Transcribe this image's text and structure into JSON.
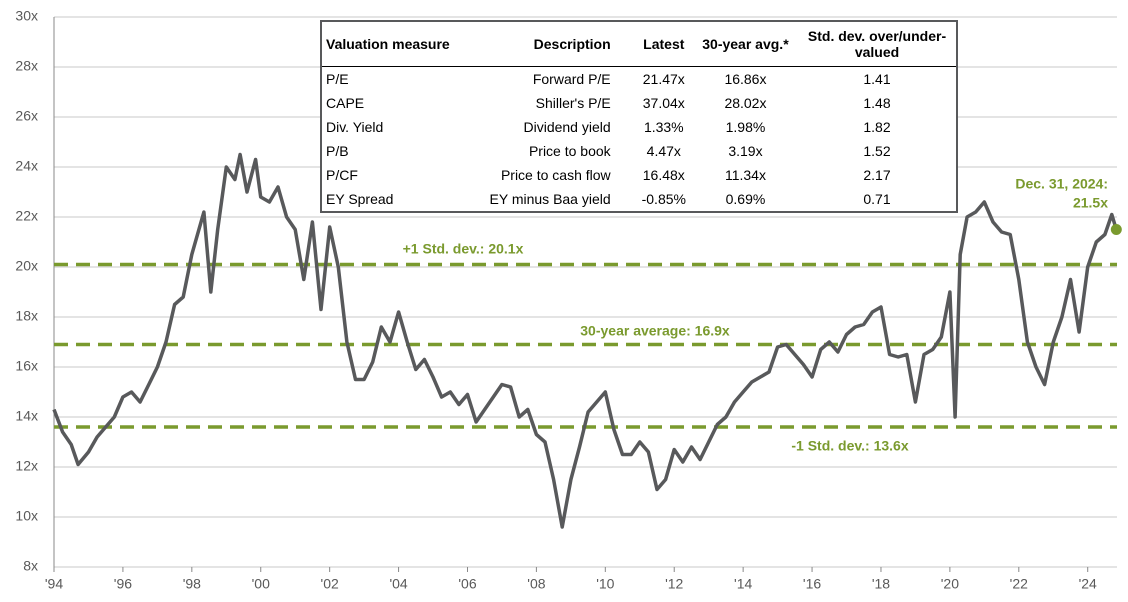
{
  "chart_data": {
    "type": "line",
    "color": "#58595b",
    "x": [
      1994.0,
      1994.25,
      1994.5,
      1994.7,
      1995.0,
      1995.25,
      1995.5,
      1995.75,
      1996.0,
      1996.25,
      1996.5,
      1996.75,
      1997.0,
      1997.25,
      1997.5,
      1997.75,
      1998.0,
      1998.35,
      1998.55,
      1998.75,
      1999.0,
      1999.25,
      1999.4,
      1999.6,
      1999.85,
      2000.0,
      2000.25,
      2000.5,
      2000.75,
      2001.0,
      2001.25,
      2001.5,
      2001.75,
      2002.0,
      2002.25,
      2002.5,
      2002.75,
      2003.0,
      2003.25,
      2003.5,
      2003.75,
      2004.0,
      2004.25,
      2004.5,
      2004.75,
      2005.0,
      2005.25,
      2005.5,
      2005.75,
      2006.0,
      2006.25,
      2006.5,
      2006.75,
      2007.0,
      2007.25,
      2007.5,
      2007.75,
      2008.0,
      2008.25,
      2008.5,
      2008.75,
      2009.0,
      2009.25,
      2009.5,
      2009.75,
      2010.0,
      2010.25,
      2010.5,
      2010.75,
      2011.0,
      2011.25,
      2011.5,
      2011.75,
      2012.0,
      2012.25,
      2012.5,
      2012.75,
      2013.0,
      2013.25,
      2013.5,
      2013.75,
      2014.0,
      2014.25,
      2014.5,
      2014.75,
      2015.0,
      2015.25,
      2015.5,
      2015.75,
      2016.0,
      2016.25,
      2016.5,
      2016.75,
      2017.0,
      2017.25,
      2017.5,
      2017.75,
      2018.0,
      2018.25,
      2018.5,
      2018.75,
      2019.0,
      2019.25,
      2019.5,
      2019.75,
      2020.0,
      2020.15,
      2020.3,
      2020.5,
      2020.75,
      2021.0,
      2021.25,
      2021.5,
      2021.75,
      2022.0,
      2022.25,
      2022.5,
      2022.75,
      2023.0,
      2023.25,
      2023.5,
      2023.75,
      2024.0,
      2024.25,
      2024.5,
      2024.7,
      2024.83
    ],
    "values": [
      14.3,
      13.4,
      12.9,
      12.1,
      12.6,
      13.2,
      13.6,
      14.0,
      14.8,
      15.0,
      14.6,
      15.3,
      16.0,
      17.0,
      18.5,
      18.8,
      20.5,
      22.2,
      19.0,
      21.5,
      24.0,
      23.5,
      24.5,
      23.0,
      24.3,
      22.8,
      22.6,
      23.2,
      22.0,
      21.5,
      19.5,
      21.8,
      18.3,
      21.6,
      20.0,
      17.0,
      15.5,
      15.5,
      16.2,
      17.6,
      17.0,
      18.2,
      17.0,
      15.9,
      16.3,
      15.6,
      14.8,
      15.0,
      14.5,
      14.9,
      13.8,
      14.3,
      14.8,
      15.3,
      15.2,
      14.0,
      14.3,
      13.3,
      13.0,
      11.5,
      9.6,
      11.5,
      12.8,
      14.2,
      14.6,
      15.0,
      13.5,
      12.5,
      12.5,
      13.0,
      12.6,
      11.1,
      11.5,
      12.7,
      12.2,
      12.8,
      12.3,
      13.0,
      13.7,
      14.0,
      14.6,
      15.0,
      15.4,
      15.6,
      15.8,
      16.8,
      16.9,
      16.5,
      16.1,
      15.6,
      16.7,
      17.0,
      16.6,
      17.3,
      17.6,
      17.7,
      18.2,
      18.4,
      16.5,
      16.4,
      16.5,
      14.6,
      16.5,
      16.7,
      17.2,
      19.0,
      14.0,
      20.5,
      22.0,
      22.2,
      22.6,
      21.8,
      21.4,
      21.3,
      19.5,
      17.0,
      16.0,
      15.3,
      17.0,
      18.0,
      19.5,
      17.4,
      20.0,
      21.0,
      21.3,
      22.1,
      21.5
    ],
    "xlim": [
      1994,
      2024.85
    ],
    "xticks": [
      {
        "value": 1994,
        "label": "'94"
      },
      {
        "value": 1996,
        "label": "'96"
      },
      {
        "value": 1998,
        "label": "'98"
      },
      {
        "value": 2000,
        "label": "'00"
      },
      {
        "value": 2002,
        "label": "'02"
      },
      {
        "value": 2004,
        "label": "'04"
      },
      {
        "value": 2006,
        "label": "'06"
      },
      {
        "value": 2008,
        "label": "'08"
      },
      {
        "value": 2010,
        "label": "'10"
      },
      {
        "value": 2012,
        "label": "'12"
      },
      {
        "value": 2014,
        "label": "'14"
      },
      {
        "value": 2016,
        "label": "'16"
      },
      {
        "value": 2018,
        "label": "'18"
      },
      {
        "value": 2020,
        "label": "'20"
      },
      {
        "value": 2022,
        "label": "'22"
      },
      {
        "value": 2024,
        "label": "'24"
      }
    ],
    "ylim": [
      8,
      30
    ],
    "yticks": [
      {
        "value": 8,
        "label": "8x"
      },
      {
        "value": 10,
        "label": "10x"
      },
      {
        "value": 12,
        "label": "12x"
      },
      {
        "value": 14,
        "label": "14x"
      },
      {
        "value": 16,
        "label": "16x"
      },
      {
        "value": 18,
        "label": "18x"
      },
      {
        "value": 20,
        "label": "20x"
      },
      {
        "value": 22,
        "label": "22x"
      },
      {
        "value": 24,
        "label": "24x"
      },
      {
        "value": 26,
        "label": "26x"
      },
      {
        "value": 28,
        "label": "28x"
      },
      {
        "value": 30,
        "label": "30x"
      }
    ],
    "grid": true,
    "reference_color": "#7a9a2e",
    "reference_lines": [
      {
        "value": 20.1,
        "label": "+1 Std. dev.: 20.1x"
      },
      {
        "value": 16.9,
        "label": "30-year average: 16.9x"
      },
      {
        "value": 13.6,
        "label": "-1 Std. dev.: 13.6x"
      }
    ],
    "annotation": [
      "Dec. 31, 2024:",
      "21.5x"
    ],
    "table": {
      "columns": [
        "Valuation measure",
        "Description",
        "Latest",
        "30-year avg.*",
        "Std. dev. over/under-valued"
      ],
      "rows": [
        [
          "P/E",
          "Forward P/E",
          "21.47x",
          "16.86x",
          "1.41"
        ],
        [
          "CAPE",
          "Shiller's P/E",
          "37.04x",
          "28.02x",
          "1.48"
        ],
        [
          "Div. Yield",
          "Dividend yield",
          "1.33%",
          "1.98%",
          "1.82"
        ],
        [
          "P/B",
          "Price to book",
          "4.47x",
          "3.19x",
          "1.52"
        ],
        [
          "P/CF",
          "Price to cash flow",
          "16.48x",
          "11.34x",
          "2.17"
        ],
        [
          "EY Spread",
          "EY minus Baa yield",
          "-0.85%",
          "0.69%",
          "0.71"
        ]
      ]
    }
  }
}
